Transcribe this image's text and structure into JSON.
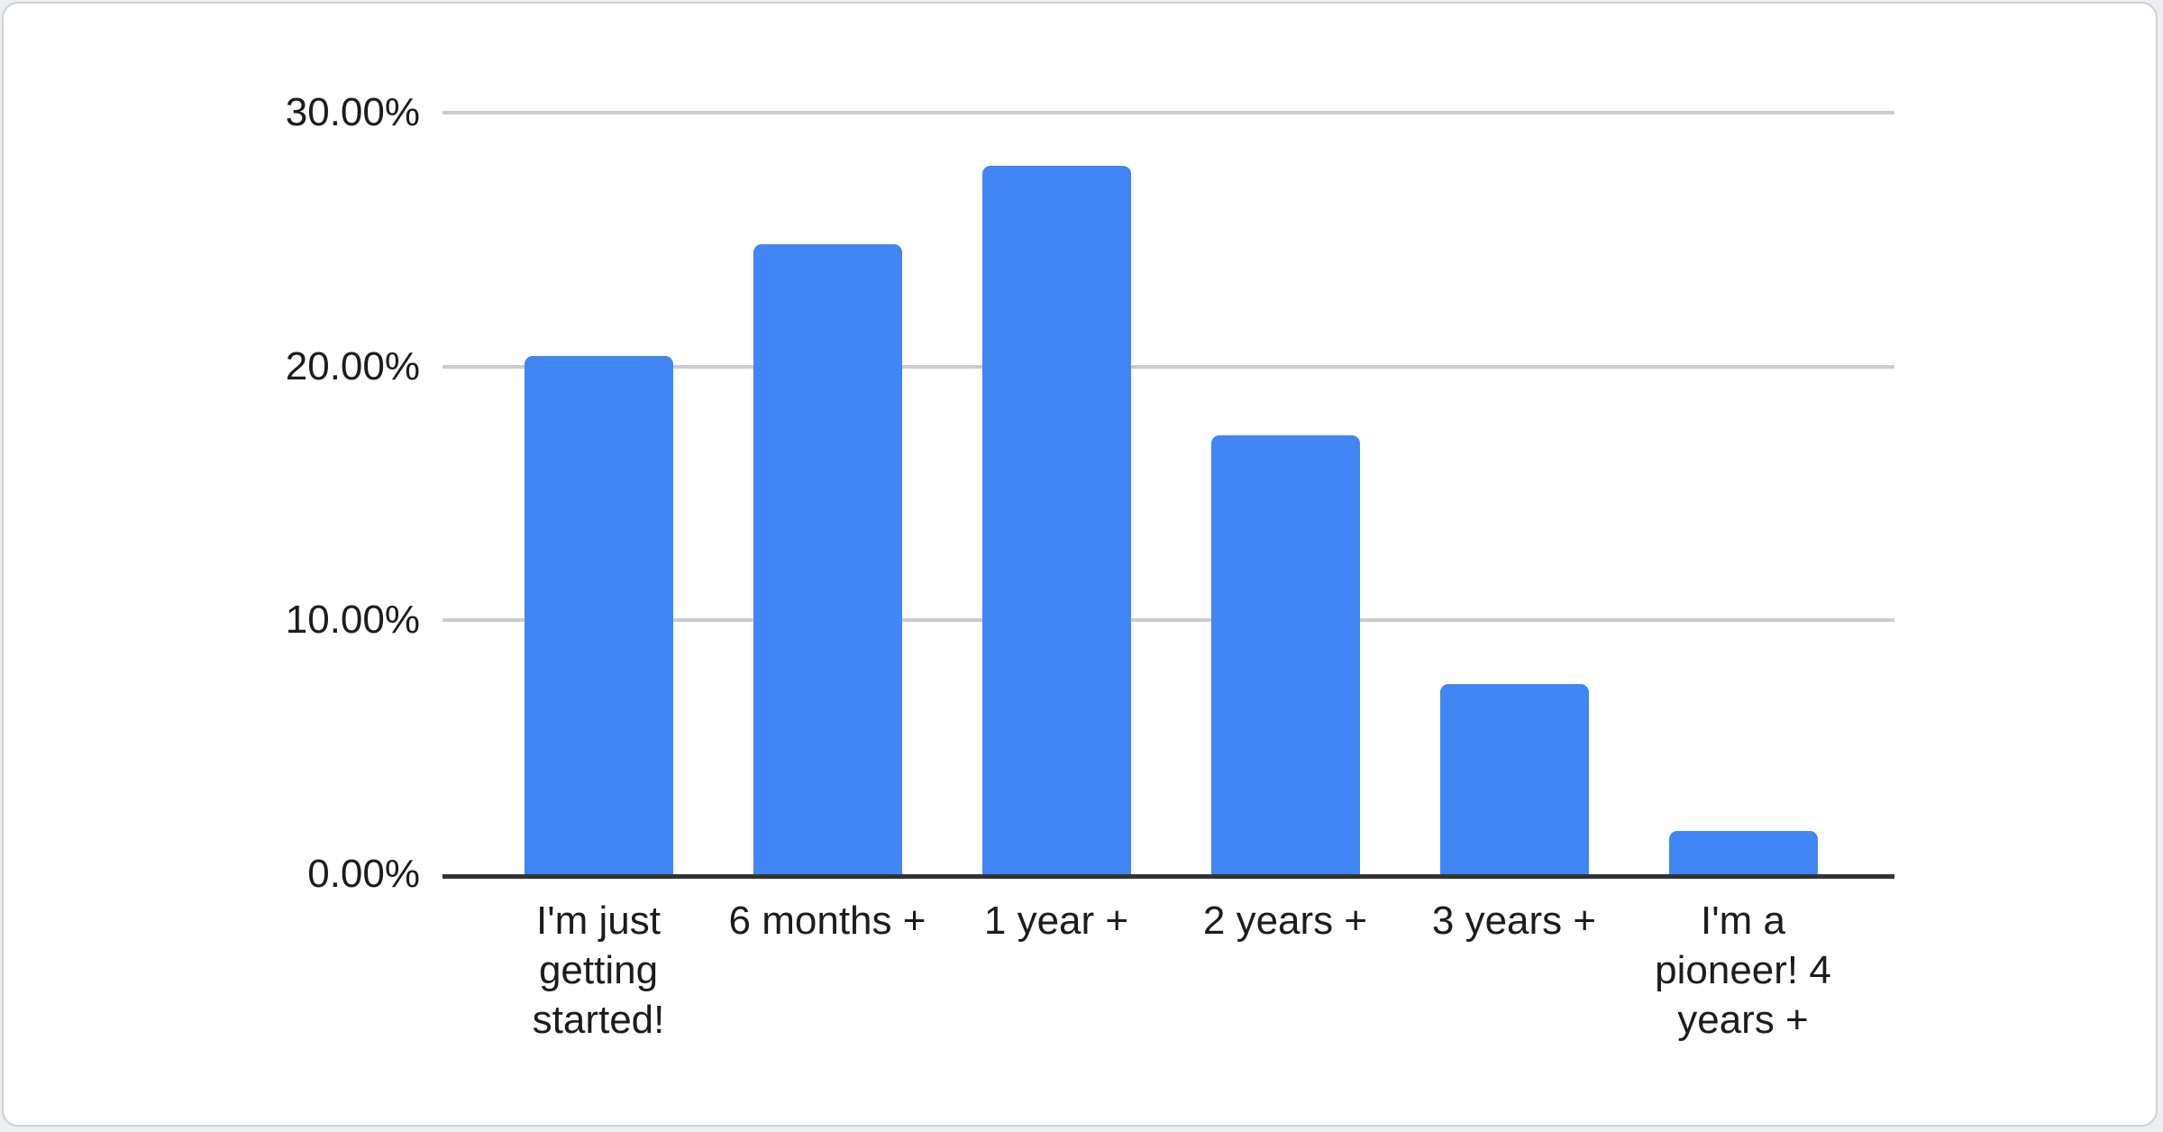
{
  "chart_data": {
    "type": "bar",
    "title": "",
    "xlabel": "",
    "ylabel": "",
    "categories": [
      "I'm just getting started!",
      "6 months +",
      "1 year +",
      "2 years +",
      "3 years +",
      "I'm a pioneer! 4 years +"
    ],
    "values": [
      20.4,
      24.8,
      27.9,
      17.3,
      7.5,
      1.7
    ],
    "ylim": [
      0,
      30
    ],
    "y_ticks": [
      {
        "label": "30.00%",
        "value": 30
      },
      {
        "label": "20.00%",
        "value": 20
      },
      {
        "label": "10.00%",
        "value": 10
      },
      {
        "label": "0.00%",
        "value": 0
      }
    ],
    "grid": true,
    "legend": "none",
    "colors": {
      "bar": "#4285f4",
      "gridline": "#cccccc",
      "axis_line": "#333333",
      "label_text": "#1c1c1c"
    }
  }
}
